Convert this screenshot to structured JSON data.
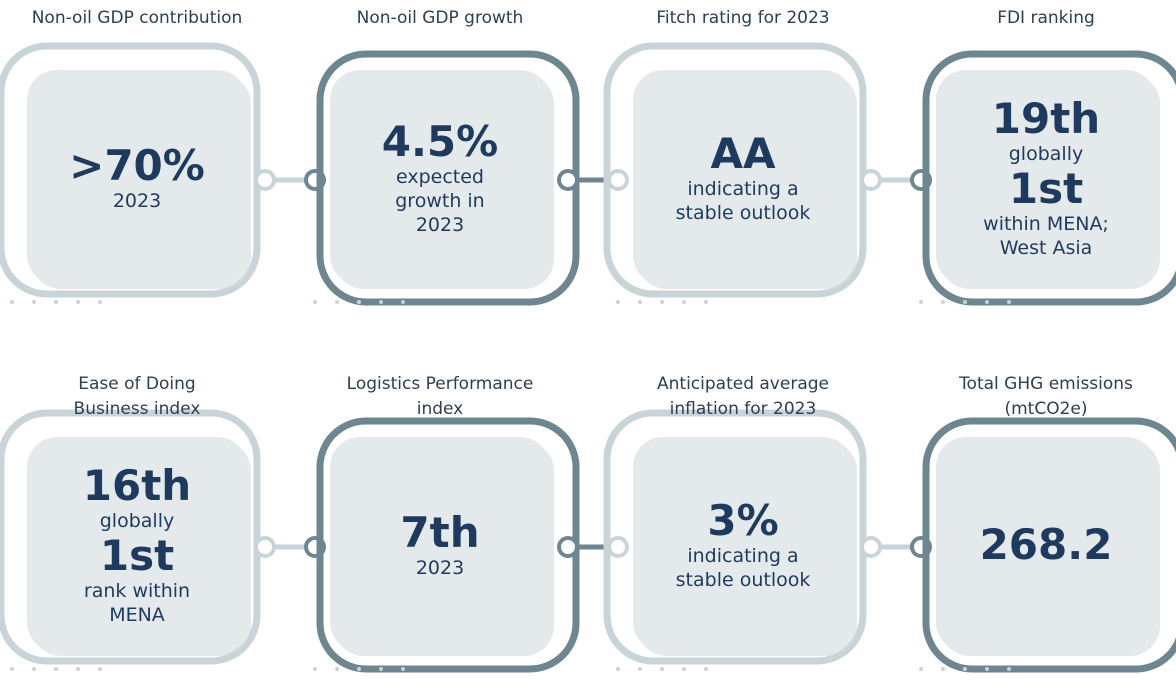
{
  "cards": [
    {
      "label": [
        "Non-oil GDP contribution"
      ],
      "lines": [
        {
          "text": ">70%",
          "style": "big"
        },
        {
          "text": "2023",
          "style": "small"
        }
      ]
    },
    {
      "label": [
        "Non-oil GDP growth"
      ],
      "lines": [
        {
          "text": "4.5%",
          "style": "big"
        },
        {
          "text": "expected",
          "style": "small"
        },
        {
          "text": "growth in",
          "style": "small"
        },
        {
          "text": "2023",
          "style": "small"
        }
      ]
    },
    {
      "label": [
        "Fitch rating for 2023"
      ],
      "lines": [
        {
          "text": "AA",
          "style": "big"
        },
        {
          "text": "indicating a",
          "style": "small"
        },
        {
          "text": "stable outlook",
          "style": "small"
        }
      ]
    },
    {
      "label": [
        "FDI ranking"
      ],
      "lines": [
        {
          "text": "19th",
          "style": "big"
        },
        {
          "text": "globally",
          "style": "small"
        },
        {
          "text": "1st",
          "style": "big"
        },
        {
          "text": "within MENA;",
          "style": "small"
        },
        {
          "text": "West Asia",
          "style": "small"
        }
      ]
    },
    {
      "label": [
        "Ease of Doing",
        "Business index"
      ],
      "lines": [
        {
          "text": "16th",
          "style": "big"
        },
        {
          "text": "globally",
          "style": "small"
        },
        {
          "text": "1st",
          "style": "big"
        },
        {
          "text": "rank within",
          "style": "small"
        },
        {
          "text": "MENA",
          "style": "small"
        }
      ]
    },
    {
      "label": [
        "Logistics Performance",
        "index"
      ],
      "lines": [
        {
          "text": "7th",
          "style": "big"
        },
        {
          "text": "2023",
          "style": "small"
        }
      ]
    },
    {
      "label": [
        "Anticipated average",
        "inflation for 2023"
      ],
      "lines": [
        {
          "text": "3%",
          "style": "big"
        },
        {
          "text": "indicating a",
          "style": "small"
        },
        {
          "text": "stable outlook",
          "style": "small"
        }
      ]
    },
    {
      "label": [
        "Total GHG emissions",
        "(mtCO2e)"
      ],
      "lines": [
        {
          "text": "268.2",
          "style": "big"
        }
      ]
    }
  ]
}
